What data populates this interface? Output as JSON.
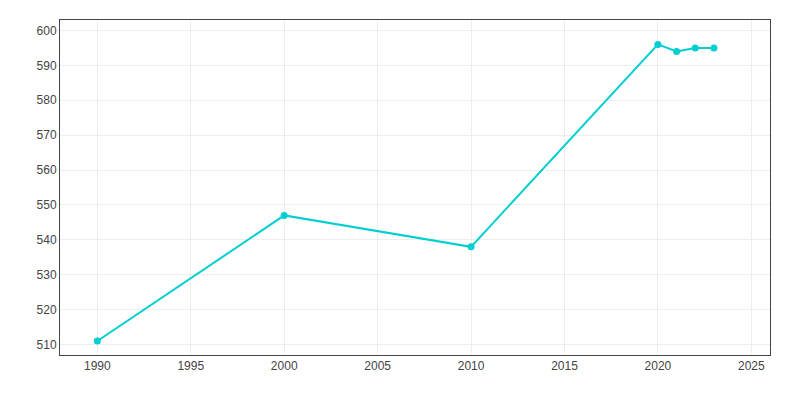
{
  "chart_data": {
    "type": "line",
    "x": [
      1990,
      2000,
      2010,
      2020,
      2021,
      2022,
      2023
    ],
    "values": [
      511,
      547,
      538,
      596,
      594,
      595,
      595
    ],
    "color": "#00CED1",
    "marker": "circle",
    "xlim": [
      1988,
      2026
    ],
    "ylim": [
      507,
      603
    ],
    "xticks": [
      1990,
      1995,
      2000,
      2005,
      2010,
      2015,
      2020,
      2025
    ],
    "yticks": [
      510,
      520,
      530,
      540,
      550,
      560,
      570,
      580,
      590,
      600
    ],
    "grid": true
  }
}
